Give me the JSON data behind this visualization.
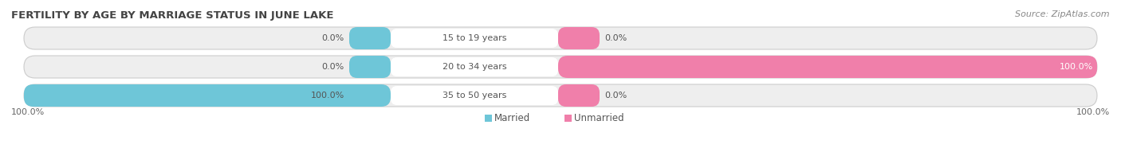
{
  "title": "FERTILITY BY AGE BY MARRIAGE STATUS IN JUNE LAKE",
  "source": "Source: ZipAtlas.com",
  "categories": [
    "15 to 19 years",
    "20 to 34 years",
    "35 to 50 years"
  ],
  "married_values": [
    0.0,
    0.0,
    100.0
  ],
  "unmarried_values": [
    0.0,
    100.0,
    0.0
  ],
  "married_color": "#6ec6d8",
  "unmarried_color": "#f07faa",
  "bar_bg_color": "#eeeeee",
  "bar_border_color": "#cccccc",
  "label_left": [
    "0.0%",
    "0.0%",
    "100.0%"
  ],
  "label_right": [
    "0.0%",
    "100.0%",
    "0.0%"
  ],
  "bottom_left": "100.0%",
  "bottom_right": "100.0%",
  "title_fontsize": 9.5,
  "source_fontsize": 8,
  "bar_label_fontsize": 8,
  "cat_label_fontsize": 8,
  "legend_fontsize": 8.5
}
